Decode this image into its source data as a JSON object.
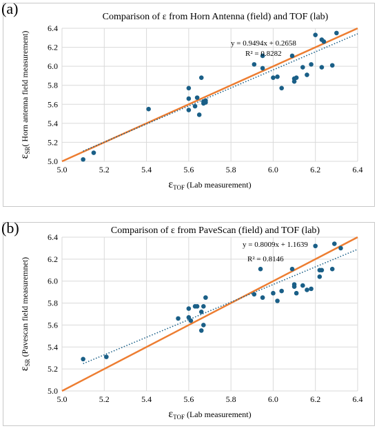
{
  "colors": {
    "points": "#1a5f87",
    "identity_line": "#ed7d31",
    "trendline": "#1a5f87",
    "grid": "#d9d9d9"
  },
  "chart_data": [
    {
      "type": "scatter",
      "panel_label": "(a)",
      "title": "Comparison of ε from Horn Antenna  (field) and  TOF (lab)",
      "xlabel_symbol": "ε",
      "xlabel_sub": "TOF",
      "xlabel_rest": " (Lab measurement)",
      "ylabel_symbol": "ε",
      "ylabel_sub": "SR",
      "ylabel_rest": "( Horn antenna field measurement)",
      "xlim": [
        5.0,
        6.4
      ],
      "ylim": [
        5.0,
        6.4
      ],
      "xticks": [
        "5.0",
        "5.2",
        "5.4",
        "5.6",
        "5.8",
        "6.0",
        "6.2",
        "6.4"
      ],
      "yticks": [
        "5.0",
        "5.2",
        "5.4",
        "5.6",
        "5.8",
        "6.0",
        "6.2",
        "6.4"
      ],
      "equation": "y = 0.9494x + 0.2658",
      "r2": "R² = 0.8282",
      "trend": {
        "slope": 0.9494,
        "intercept": 0.2658,
        "x_range": [
          5.1,
          6.4
        ]
      },
      "identity_line": true,
      "x": [
        5.1,
        5.15,
        5.41,
        5.6,
        5.6,
        5.6,
        5.63,
        5.64,
        5.65,
        5.66,
        5.67,
        5.67,
        5.68,
        5.68,
        5.91,
        5.95,
        5.95,
        6.0,
        6.02,
        6.04,
        6.09,
        6.1,
        6.1,
        6.11,
        6.14,
        6.16,
        6.18,
        6.2,
        6.23,
        6.23,
        6.24,
        6.28,
        6.3
      ],
      "y": [
        5.02,
        5.09,
        5.55,
        5.54,
        5.66,
        5.77,
        5.58,
        5.67,
        5.49,
        5.88,
        5.61,
        5.63,
        5.62,
        5.64,
        6.02,
        6.11,
        5.98,
        5.88,
        5.89,
        5.77,
        6.11,
        5.84,
        5.87,
        5.88,
        5.99,
        5.91,
        6.02,
        6.33,
        5.99,
        6.28,
        6.26,
        6.01,
        6.35
      ]
    },
    {
      "type": "scatter",
      "panel_label": "(b)",
      "title": "Comparison of ε from PaveScan (field) and TOF (lab)",
      "xlabel_symbol": "ε",
      "xlabel_sub": "TOF",
      "xlabel_rest": " (Lab measurement)",
      "ylabel_symbol": "ε",
      "ylabel_sub": "SR",
      "ylabel_rest": " (Pavescan field measuremnet)",
      "xlim": [
        5.0,
        6.4
      ],
      "ylim": [
        5.0,
        6.4
      ],
      "xticks": [
        "5.0",
        "5.2",
        "5.4",
        "5.6",
        "5.8",
        "6.0",
        "6.2",
        "6.4"
      ],
      "yticks": [
        "5.0",
        "5.2",
        "5.4",
        "5.6",
        "5.8",
        "6.0",
        "6.2",
        "6.4"
      ],
      "equation": "y = 0.8009x + 1.1639",
      "r2": "R² = 0.8146",
      "trend": {
        "slope": 0.8009,
        "intercept": 1.1639,
        "x_range": [
          5.1,
          6.4
        ]
      },
      "identity_line": true,
      "x": [
        5.1,
        5.21,
        5.55,
        5.6,
        5.6,
        5.61,
        5.63,
        5.64,
        5.66,
        5.66,
        5.67,
        5.67,
        5.68,
        5.91,
        5.94,
        5.95,
        6.0,
        6.02,
        6.04,
        6.09,
        6.1,
        6.1,
        6.11,
        6.14,
        6.16,
        6.18,
        6.2,
        6.22,
        6.22,
        6.23,
        6.28,
        6.29,
        6.32
      ],
      "y": [
        5.29,
        5.31,
        5.66,
        5.67,
        5.75,
        5.64,
        5.77,
        5.77,
        5.55,
        5.72,
        5.6,
        5.77,
        5.85,
        5.88,
        6.11,
        5.85,
        5.89,
        5.82,
        5.91,
        6.11,
        5.95,
        5.97,
        5.89,
        5.96,
        5.92,
        5.93,
        6.32,
        6.04,
        6.1,
        6.1,
        6.11,
        6.34,
        6.3
      ]
    }
  ]
}
